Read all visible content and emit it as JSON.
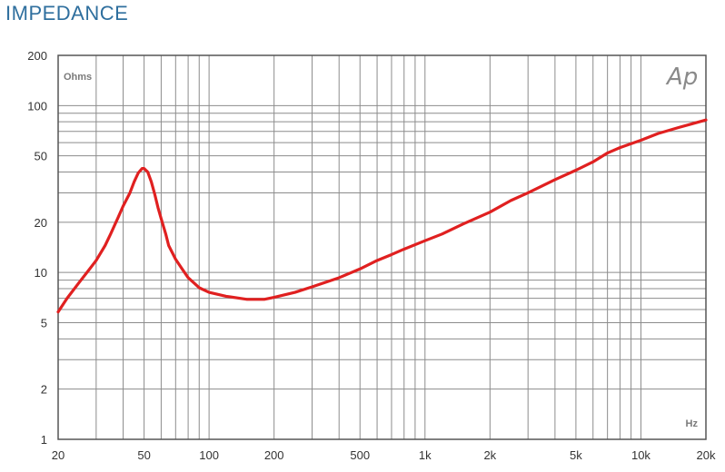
{
  "chart_data": {
    "type": "line",
    "title": "IMPEDANCE",
    "ylabel": "Ohms",
    "xlabel": "Hz",
    "logo": "Ap",
    "x_scale": "log",
    "y_scale": "log",
    "xlim": [
      20,
      20000
    ],
    "ylim": [
      1,
      200
    ],
    "grid": true,
    "line_color": "#e02020",
    "x_ticks": [
      {
        "value": 20,
        "label": "20"
      },
      {
        "value": 50,
        "label": "50"
      },
      {
        "value": 100,
        "label": "100"
      },
      {
        "value": 200,
        "label": "200"
      },
      {
        "value": 500,
        "label": "500"
      },
      {
        "value": 1000,
        "label": "1k"
      },
      {
        "value": 2000,
        "label": "2k"
      },
      {
        "value": 5000,
        "label": "5k"
      },
      {
        "value": 10000,
        "label": "10k"
      },
      {
        "value": 20000,
        "label": "20k"
      }
    ],
    "y_ticks": [
      {
        "value": 1,
        "label": "1"
      },
      {
        "value": 2,
        "label": "2"
      },
      {
        "value": 5,
        "label": "5"
      },
      {
        "value": 10,
        "label": "10"
      },
      {
        "value": 20,
        "label": "20"
      },
      {
        "value": 50,
        "label": "50"
      },
      {
        "value": 100,
        "label": "100"
      },
      {
        "value": 200,
        "label": "200"
      }
    ],
    "series": [
      {
        "x": [
          20,
          22,
          25,
          28,
          30,
          33,
          35,
          38,
          40,
          43,
          45,
          47,
          49,
          50,
          52,
          54,
          56,
          58,
          60,
          63,
          65,
          70,
          75,
          80,
          90,
          100,
          120,
          150,
          180,
          200,
          250,
          300,
          400,
          500,
          600,
          700,
          800,
          1000,
          1200,
          1500,
          2000,
          2500,
          3000,
          4000,
          5000,
          6000,
          7000,
          8000,
          10000,
          12000,
          15000,
          20000
        ],
        "y": [
          5.8,
          7.0,
          8.7,
          10.5,
          11.8,
          14.5,
          17.0,
          21.5,
          25.0,
          30.0,
          35.0,
          39.5,
          42.0,
          42.0,
          40.0,
          35.0,
          29.5,
          24.5,
          21.0,
          17.0,
          14.5,
          12.0,
          10.5,
          9.3,
          8.1,
          7.6,
          7.2,
          6.9,
          6.9,
          7.1,
          7.6,
          8.2,
          9.3,
          10.5,
          11.8,
          12.8,
          13.8,
          15.5,
          17.0,
          19.5,
          23.0,
          27.0,
          30.0,
          36.0,
          41.0,
          46.0,
          52.0,
          56.0,
          62.0,
          68.0,
          74.0,
          82.0
        ]
      }
    ]
  }
}
